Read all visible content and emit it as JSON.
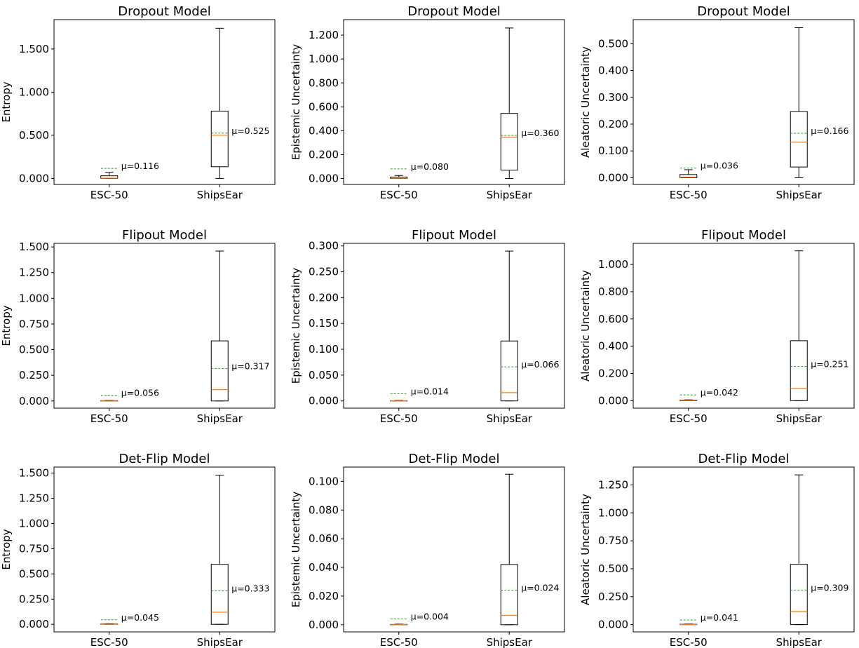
{
  "chart_data": [
    {
      "type": "box",
      "title": "Dropout Model",
      "ylabel": "Entropy",
      "categories": [
        "ESC-50",
        "ShipsEar"
      ],
      "ylim": [
        -0.07,
        1.84
      ],
      "yticks": [
        0,
        0.5,
        1.0,
        1.5
      ],
      "tick_labels": [
        "0.000",
        "0.500",
        "1.000",
        "1.500"
      ],
      "boxes": [
        {
          "min": 0.0,
          "q1": 0.0,
          "median": 0.003,
          "q3": 0.03,
          "max": 0.07,
          "mean": 0.116,
          "mean_label": "μ=0.116"
        },
        {
          "min": 0.0,
          "q1": 0.135,
          "median": 0.5,
          "q3": 0.78,
          "max": 1.74,
          "mean": 0.525,
          "mean_label": "μ=0.525"
        }
      ]
    },
    {
      "type": "box",
      "title": "Dropout Model",
      "ylabel": "Epistemic Uncertainty",
      "categories": [
        "ESC-50",
        "ShipsEar"
      ],
      "ylim": [
        -0.05,
        1.33
      ],
      "yticks": [
        0,
        0.2,
        0.4,
        0.6,
        0.8,
        1.0,
        1.2
      ],
      "tick_labels": [
        "0.000",
        "0.200",
        "0.400",
        "0.600",
        "0.800",
        "1.000",
        "1.200"
      ],
      "boxes": [
        {
          "min": 0.0,
          "q1": 0.0,
          "median": 0.002,
          "q3": 0.012,
          "max": 0.025,
          "mean": 0.08,
          "mean_label": "μ=0.080"
        },
        {
          "min": 0.0,
          "q1": 0.07,
          "median": 0.345,
          "q3": 0.545,
          "max": 1.26,
          "mean": 0.36,
          "mean_label": "μ=0.360"
        }
      ]
    },
    {
      "type": "box",
      "title": "Dropout Model",
      "ylabel": "Aleatoric Uncertainty",
      "categories": [
        "ESC-50",
        "ShipsEar"
      ],
      "ylim": [
        -0.025,
        0.59
      ],
      "yticks": [
        0,
        0.1,
        0.2,
        0.3,
        0.4,
        0.5
      ],
      "tick_labels": [
        "0.000",
        "0.100",
        "0.200",
        "0.300",
        "0.400",
        "0.500"
      ],
      "boxes": [
        {
          "min": 0.0,
          "q1": 0.0,
          "median": 0.002,
          "q3": 0.012,
          "max": 0.03,
          "mean": 0.036,
          "mean_label": "μ=0.036"
        },
        {
          "min": 0.0,
          "q1": 0.04,
          "median": 0.133,
          "q3": 0.247,
          "max": 0.56,
          "mean": 0.166,
          "mean_label": "μ=0.166"
        }
      ]
    },
    {
      "type": "box",
      "title": "Flipout Model",
      "ylabel": "Entropy",
      "categories": [
        "ESC-50",
        "ShipsEar"
      ],
      "ylim": [
        -0.07,
        1.535
      ],
      "yticks": [
        0,
        0.25,
        0.5,
        0.75,
        1.0,
        1.25,
        1.5
      ],
      "tick_labels": [
        "0.000",
        "0.250",
        "0.500",
        "0.750",
        "1.000",
        "1.250",
        "1.500"
      ],
      "boxes": [
        {
          "min": 0.0,
          "q1": 0.0,
          "median": 0.0,
          "q3": 0.003,
          "max": 0.005,
          "mean": 0.056,
          "mean_label": "μ=0.056"
        },
        {
          "min": 0.0,
          "q1": 0.0,
          "median": 0.11,
          "q3": 0.585,
          "max": 1.46,
          "mean": 0.317,
          "mean_label": "μ=0.317"
        }
      ]
    },
    {
      "type": "box",
      "title": "Flipout Model",
      "ylabel": "Epistemic Uncertainty",
      "categories": [
        "ESC-50",
        "ShipsEar"
      ],
      "ylim": [
        -0.014,
        0.305
      ],
      "yticks": [
        0,
        0.05,
        0.1,
        0.15,
        0.2,
        0.25,
        0.3
      ],
      "tick_labels": [
        "0.000",
        "0.050",
        "0.100",
        "0.150",
        "0.200",
        "0.250",
        "0.300"
      ],
      "boxes": [
        {
          "min": 0.0,
          "q1": 0.0,
          "median": 0.0,
          "q3": 0.0005,
          "max": 0.001,
          "mean": 0.014,
          "mean_label": "μ=0.014"
        },
        {
          "min": 0.0,
          "q1": 0.0,
          "median": 0.016,
          "q3": 0.116,
          "max": 0.29,
          "mean": 0.066,
          "mean_label": "μ=0.066"
        }
      ]
    },
    {
      "type": "box",
      "title": "Flipout Model",
      "ylabel": "Aleatoric Uncertainty",
      "categories": [
        "ESC-50",
        "ShipsEar"
      ],
      "ylim": [
        -0.055,
        1.155
      ],
      "yticks": [
        0,
        0.2,
        0.4,
        0.6,
        0.8,
        1.0
      ],
      "tick_labels": [
        "0.000",
        "0.200",
        "0.400",
        "0.600",
        "0.800",
        "1.000"
      ],
      "boxes": [
        {
          "min": 0.0,
          "q1": 0.0,
          "median": 0.0,
          "q3": 0.004,
          "max": 0.006,
          "mean": 0.042,
          "mean_label": "μ=0.042"
        },
        {
          "min": 0.0,
          "q1": 0.0,
          "median": 0.09,
          "q3": 0.44,
          "max": 1.1,
          "mean": 0.251,
          "mean_label": "μ=0.251"
        }
      ]
    },
    {
      "type": "box",
      "title": "Det-Flip Model",
      "ylabel": "Entropy",
      "categories": [
        "ESC-50",
        "ShipsEar"
      ],
      "ylim": [
        -0.075,
        1.56
      ],
      "yticks": [
        0,
        0.25,
        0.5,
        0.75,
        1.0,
        1.25,
        1.5
      ],
      "tick_labels": [
        "0.000",
        "0.250",
        "0.500",
        "0.750",
        "1.000",
        "1.250",
        "1.500"
      ],
      "boxes": [
        {
          "min": 0.0,
          "q1": 0.0,
          "median": 0.0,
          "q3": 0.003,
          "max": 0.005,
          "mean": 0.045,
          "mean_label": "μ=0.045"
        },
        {
          "min": 0.0,
          "q1": 0.0,
          "median": 0.12,
          "q3": 0.595,
          "max": 1.48,
          "mean": 0.333,
          "mean_label": "μ=0.333"
        }
      ]
    },
    {
      "type": "box",
      "title": "Det-Flip Model",
      "ylabel": "Epistemic Uncertainty",
      "categories": [
        "ESC-50",
        "ShipsEar"
      ],
      "ylim": [
        -0.005,
        0.11
      ],
      "yticks": [
        0,
        0.02,
        0.04,
        0.06,
        0.08,
        0.1
      ],
      "tick_labels": [
        "0.000",
        "0.020",
        "0.040",
        "0.060",
        "0.080",
        "0.100"
      ],
      "boxes": [
        {
          "min": 0.0,
          "q1": 0.0,
          "median": 0.0,
          "q3": 0.0002,
          "max": 0.0004,
          "mean": 0.004,
          "mean_label": "μ=0.004"
        },
        {
          "min": 0.0,
          "q1": 0.0,
          "median": 0.0065,
          "q3": 0.042,
          "max": 0.105,
          "mean": 0.024,
          "mean_label": "μ=0.024"
        }
      ]
    },
    {
      "type": "box",
      "title": "Det-Flip Model",
      "ylabel": "Aleatoric Uncertainty",
      "categories": [
        "ESC-50",
        "ShipsEar"
      ],
      "ylim": [
        -0.065,
        1.41
      ],
      "yticks": [
        0,
        0.25,
        0.5,
        0.75,
        1.0,
        1.25
      ],
      "tick_labels": [
        "0.000",
        "0.250",
        "0.500",
        "0.750",
        "1.000",
        "1.250"
      ],
      "boxes": [
        {
          "min": 0.0,
          "q1": 0.0,
          "median": 0.0,
          "q3": 0.003,
          "max": 0.005,
          "mean": 0.041,
          "mean_label": "μ=0.041"
        },
        {
          "min": 0.0,
          "q1": 0.0,
          "median": 0.115,
          "q3": 0.54,
          "max": 1.34,
          "mean": 0.309,
          "mean_label": "μ=0.309"
        }
      ]
    }
  ],
  "colors": {
    "box": "#000000",
    "median": "#ff7f0e",
    "mean": "#2ca02c"
  }
}
